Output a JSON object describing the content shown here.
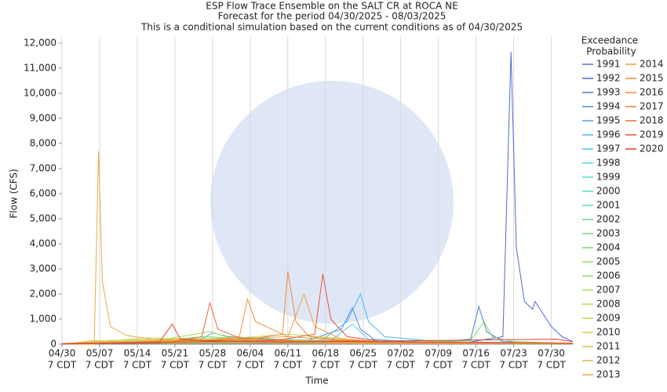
{
  "chart_data": {
    "type": "line",
    "title": [
      "ESP Flow Trace Ensemble on the SALT CR at ROCA NE",
      "Forecast for the period 04/30/2025 - 08/03/2025",
      "This is a conditional simulation based on the current conditions as of 04/30/2025"
    ],
    "x_label": "Time",
    "y_label": "Flow (CFS)",
    "legend_title": [
      "Exceedance",
      "Probability"
    ],
    "legend": "right",
    "grid": true,
    "xlim": [
      0,
      95
    ],
    "xticks": [
      {
        "value": 0,
        "label": [
          "04/30",
          "7 CDT"
        ]
      },
      {
        "value": 7,
        "label": [
          "05/07",
          "7 CDT"
        ]
      },
      {
        "value": 14,
        "label": [
          "05/14",
          "7 CDT"
        ]
      },
      {
        "value": 21,
        "label": [
          "05/21",
          "7 CDT"
        ]
      },
      {
        "value": 28,
        "label": [
          "05/28",
          "7 CDT"
        ]
      },
      {
        "value": 35,
        "label": [
          "06/04",
          "7 CDT"
        ]
      },
      {
        "value": 42,
        "label": [
          "06/11",
          "7 CDT"
        ]
      },
      {
        "value": 49,
        "label": [
          "06/18",
          "7 CDT"
        ]
      },
      {
        "value": 56,
        "label": [
          "06/25",
          "7 CDT"
        ]
      },
      {
        "value": 63,
        "label": [
          "07/02",
          "7 CDT"
        ]
      },
      {
        "value": 70,
        "label": [
          "07/09",
          "7 CDT"
        ]
      },
      {
        "value": 77,
        "label": [
          "07/16",
          "7 CDT"
        ]
      },
      {
        "value": 84,
        "label": [
          "07/23",
          "7 CDT"
        ]
      },
      {
        "value": 91,
        "label": [
          "07/30",
          "7 CDT"
        ]
      }
    ],
    "ylim": [
      0,
      12000
    ],
    "yticks": [
      0,
      {
        "value": 1000,
        "label": "1,000"
      },
      {
        "value": 2000,
        "label": "2,000"
      },
      {
        "value": 3000,
        "label": "3,000"
      },
      {
        "value": 4000,
        "label": "4,000"
      },
      {
        "value": 5000,
        "label": "5,000"
      },
      {
        "value": 6000,
        "label": "6,000"
      },
      {
        "value": 7000,
        "label": "7,000"
      },
      {
        "value": 8000,
        "label": "8,000"
      },
      {
        "value": 9000,
        "label": "9,000"
      },
      {
        "value": 10000,
        "label": "10,000"
      },
      {
        "value": 11000,
        "label": "11,000"
      },
      {
        "value": 12000,
        "label": "12,000"
      }
    ],
    "series": [
      {
        "name": "1991",
        "color": "#5b6ee1",
        "x": [
          0,
          20,
          30,
          40,
          55,
          70,
          85,
          95
        ],
        "values": [
          10,
          40,
          150,
          120,
          80,
          40,
          60,
          30
        ]
      },
      {
        "name": "1992",
        "color": "#5068d8",
        "x": [
          0,
          60,
          75,
          82,
          83.5,
          84.5,
          86,
          87.5,
          88,
          91,
          93,
          95
        ],
        "values": [
          20,
          40,
          60,
          300,
          11650,
          3850,
          1700,
          1400,
          1700,
          700,
          300,
          100
        ]
      },
      {
        "name": "1993",
        "color": "#4a7bd8",
        "x": [
          0,
          70,
          76,
          77.5,
          79,
          82,
          90,
          95
        ],
        "values": [
          20,
          80,
          200,
          1500,
          500,
          100,
          60,
          40
        ]
      },
      {
        "name": "1994",
        "color": "#4a8de0",
        "x": [
          0,
          45,
          52,
          54,
          55.5,
          58,
          65,
          95
        ],
        "values": [
          30,
          100,
          600,
          1450,
          600,
          200,
          80,
          30
        ]
      },
      {
        "name": "1995",
        "color": "#4aa5e8",
        "x": [
          0,
          25,
          28,
          31,
          40,
          55,
          95
        ],
        "values": [
          20,
          100,
          450,
          300,
          200,
          100,
          40
        ]
      },
      {
        "name": "1996",
        "color": "#4ab8ee",
        "x": [
          0,
          48,
          53,
          55.5,
          57,
          60,
          70,
          95
        ],
        "values": [
          20,
          100,
          900,
          2000,
          900,
          300,
          100,
          40
        ]
      },
      {
        "name": "1997",
        "color": "#4ccbee",
        "x": [
          0,
          10,
          30,
          50,
          54,
          57,
          70,
          95
        ],
        "values": [
          10,
          60,
          80,
          150,
          800,
          200,
          60,
          20
        ]
      },
      {
        "name": "1998",
        "color": "#4ed8e0",
        "x": [
          0,
          15,
          25,
          40,
          60,
          95
        ],
        "values": [
          20,
          80,
          60,
          100,
          50,
          20
        ]
      },
      {
        "name": "1999",
        "color": "#50dccc",
        "x": [
          0,
          20,
          35,
          50,
          70,
          95
        ],
        "values": [
          10,
          50,
          120,
          80,
          40,
          20
        ]
      },
      {
        "name": "2000",
        "color": "#52dfb8",
        "x": [
          0,
          12,
          28,
          45,
          65,
          95
        ],
        "values": [
          20,
          60,
          90,
          110,
          50,
          20
        ]
      },
      {
        "name": "2001",
        "color": "#56e0a4",
        "x": [
          0,
          18,
          33,
          52,
          75,
          95
        ],
        "values": [
          10,
          40,
          130,
          70,
          40,
          20
        ]
      },
      {
        "name": "2002",
        "color": "#5ce090",
        "x": [
          0,
          22,
          38,
          58,
          80,
          95
        ],
        "values": [
          15,
          70,
          200,
          90,
          50,
          20
        ]
      },
      {
        "name": "2003",
        "color": "#66e07c",
        "x": [
          0,
          10,
          30,
          47,
          68,
          95
        ],
        "values": [
          10,
          60,
          150,
          100,
          40,
          20
        ]
      },
      {
        "name": "2004",
        "color": "#74e06a",
        "x": [
          0,
          14,
          27,
          38,
          55,
          95
        ],
        "values": [
          20,
          100,
          300,
          150,
          60,
          20
        ]
      },
      {
        "name": "2005",
        "color": "#84e05c",
        "x": [
          0,
          60,
          76,
          78.5,
          80,
          84,
          95
        ],
        "values": [
          20,
          60,
          150,
          900,
          300,
          100,
          30
        ]
      },
      {
        "name": "2006",
        "color": "#96de52",
        "x": [
          0,
          9,
          31,
          44,
          66,
          95
        ],
        "values": [
          10,
          150,
          250,
          120,
          60,
          20
        ]
      },
      {
        "name": "2007",
        "color": "#a8dc4c",
        "x": [
          0,
          16,
          27.5,
          32,
          50,
          95
        ],
        "values": [
          10,
          80,
          500,
          200,
          60,
          20
        ]
      },
      {
        "name": "2008",
        "color": "#bad848",
        "x": [
          0,
          20,
          36,
          42,
          60,
          95
        ],
        "values": [
          15,
          60,
          300,
          400,
          80,
          20
        ]
      },
      {
        "name": "2009",
        "color": "#cad446",
        "x": [
          0,
          12,
          24,
          40,
          62,
          95
        ],
        "values": [
          20,
          120,
          180,
          100,
          50,
          20
        ]
      },
      {
        "name": "2010",
        "color": "#d8cc44",
        "x": [
          0,
          8,
          16,
          30,
          55,
          95
        ],
        "values": [
          10,
          120,
          250,
          150,
          60,
          20
        ]
      },
      {
        "name": "2011",
        "color": "#e2c244",
        "x": [
          0,
          13,
          20,
          35,
          58,
          95
        ],
        "values": [
          10,
          80,
          150,
          200,
          60,
          20
        ]
      },
      {
        "name": "2012",
        "color": "#e8b444",
        "x": [
          0,
          6,
          10,
          22,
          45,
          95
        ],
        "values": [
          0,
          150,
          100,
          180,
          80,
          20
        ]
      },
      {
        "name": "2013",
        "color": "#ecaa44",
        "x": [
          0,
          6,
          6.8,
          7.5,
          9,
          12,
          18,
          25,
          40,
          95
        ],
        "values": [
          0,
          0,
          7700,
          2500,
          700,
          350,
          150,
          80,
          40,
          20
        ]
      },
      {
        "name": "2014",
        "color": "#f0a040",
        "x": [
          0,
          30,
          42,
          45,
          47,
          52,
          60,
          95
        ],
        "values": [
          10,
          200,
          300,
          2000,
          700,
          200,
          80,
          30
        ]
      },
      {
        "name": "2015",
        "color": "#f0943c",
        "x": [
          0,
          25,
          33,
          34.5,
          36,
          42,
          55,
          95
        ],
        "values": [
          10,
          100,
          300,
          1800,
          900,
          300,
          100,
          30
        ]
      },
      {
        "name": "2016",
        "color": "#f0883a",
        "x": [
          0,
          35,
          41,
          42,
          43.5,
          46,
          55,
          95
        ],
        "values": [
          20,
          200,
          400,
          2900,
          900,
          300,
          100,
          40
        ]
      },
      {
        "name": "2017",
        "color": "#ee7a38",
        "x": [
          0,
          20,
          40,
          55,
          60,
          70,
          80,
          95
        ],
        "values": [
          10,
          60,
          100,
          150,
          100,
          80,
          60,
          20
        ]
      },
      {
        "name": "2018",
        "color": "#ec6a36",
        "x": [
          0,
          20,
          26,
          27.5,
          29,
          33,
          45,
          95
        ],
        "values": [
          10,
          60,
          300,
          1650,
          600,
          250,
          100,
          30
        ]
      },
      {
        "name": "2019",
        "color": "#e85434",
        "x": [
          0,
          40,
          47,
          48.5,
          50,
          53,
          60,
          95
        ],
        "values": [
          20,
          150,
          400,
          2800,
          1000,
          300,
          100,
          40
        ]
      },
      {
        "name": "2020",
        "color": "#e04030",
        "x": [
          0,
          18,
          20.5,
          22,
          26,
          40,
          92,
          95
        ],
        "values": [
          10,
          50,
          800,
          200,
          150,
          80,
          200,
          100
        ]
      }
    ]
  }
}
